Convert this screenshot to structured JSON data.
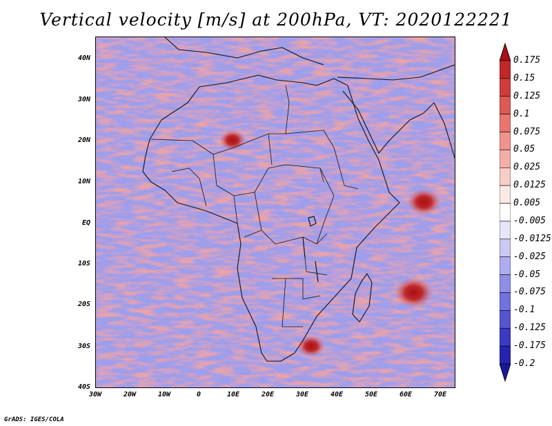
{
  "title": "Vertical velocity [m/s] at 200hPa, VT: 2020122221",
  "map": {
    "region": "Africa",
    "lon_range": [
      -30,
      75
    ],
    "lat_range": [
      -40,
      45
    ],
    "lat_labels": [
      "40N",
      "30N",
      "20N",
      "10N",
      "EQ",
      "10S",
      "20S",
      "30S",
      "40S"
    ],
    "lat_values": [
      40,
      30,
      20,
      10,
      0,
      -10,
      -20,
      -30,
      -40
    ],
    "lon_labels": [
      "30W",
      "20W",
      "10W",
      "0",
      "10E",
      "20E",
      "30E",
      "40E",
      "50E",
      "60E",
      "70E"
    ],
    "lon_values": [
      -30,
      -20,
      -10,
      0,
      10,
      20,
      30,
      40,
      50,
      60,
      70
    ],
    "ascent_centers": [
      {
        "lon": 63,
        "lat": -17,
        "strength": 1.0
      },
      {
        "lon": 66,
        "lat": 5,
        "strength": 0.8
      },
      {
        "lon": 10,
        "lat": 20,
        "strength": 0.5
      },
      {
        "lon": 33,
        "lat": -30,
        "strength": 0.55
      }
    ]
  },
  "colorbar": {
    "levels": [
      "0.175",
      "0.15",
      "0.125",
      "0.1",
      "0.075",
      "0.05",
      "0.025",
      "0.0125",
      "0.005",
      "-0.005",
      "-0.0125",
      "-0.025",
      "-0.05",
      "-0.075",
      "-0.1",
      "-0.125",
      "-0.175",
      "-0.2"
    ],
    "colors": [
      "#a50f15",
      "#c0282a",
      "#d23c3c",
      "#de5a55",
      "#e8766f",
      "#ef948c",
      "#f4b0a8",
      "#f8cdc6",
      "#fce8e4",
      "#ffffff",
      "#e6e6fb",
      "#c9c9f4",
      "#acacee",
      "#8f8fe6",
      "#7272dd",
      "#5555d2",
      "#3a3ac3",
      "#2424b0",
      "#18189a"
    ]
  },
  "footer": "GrADS: IGES/COLA"
}
